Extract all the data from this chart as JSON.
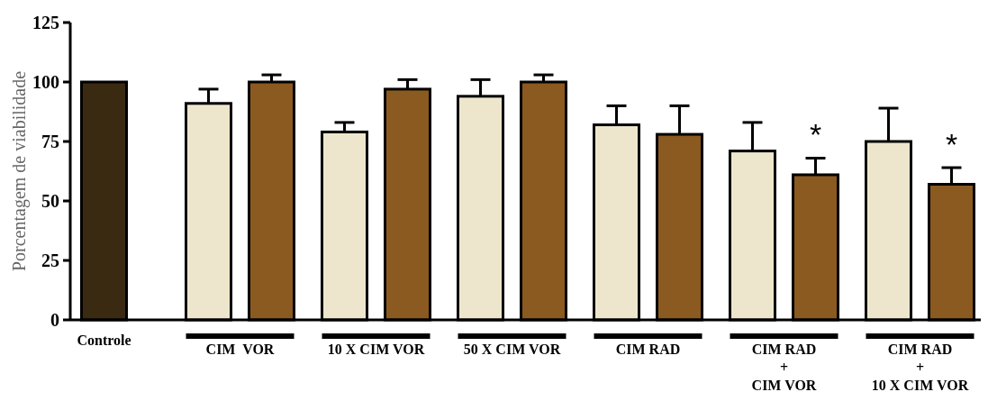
{
  "chart_data": {
    "type": "bar",
    "ylabel": "Porcentagem de viabilidade",
    "categories": [
      "Controle",
      "CIM  VOR",
      "10 X CIM VOR",
      "50 X CIM VOR",
      "CIM RAD",
      "CIM RAD\n+\nCIM VOR",
      "CIM RAD\n+\n10 X CIM VOR"
    ],
    "series": [
      {
        "color": "#3b2a12",
        "values": [
          100,
          null,
          null,
          null,
          null,
          null,
          null
        ]
      },
      {
        "color": "#ede6cc",
        "values": [
          null,
          91,
          79,
          94,
          82,
          71,
          75
        ],
        "errors": [
          null,
          6,
          4,
          7,
          8,
          12,
          14
        ]
      },
      {
        "color": "#8b5a20",
        "values": [
          null,
          100,
          97,
          100,
          78,
          61,
          57
        ],
        "errors": [
          null,
          3,
          4,
          3,
          12,
          7,
          7
        ]
      }
    ],
    "ylim": [
      0,
      125
    ],
    "yticks": [
      0,
      25,
      50,
      75,
      100,
      125
    ],
    "grid": false,
    "annotations": [
      "*",
      "*"
    ]
  }
}
